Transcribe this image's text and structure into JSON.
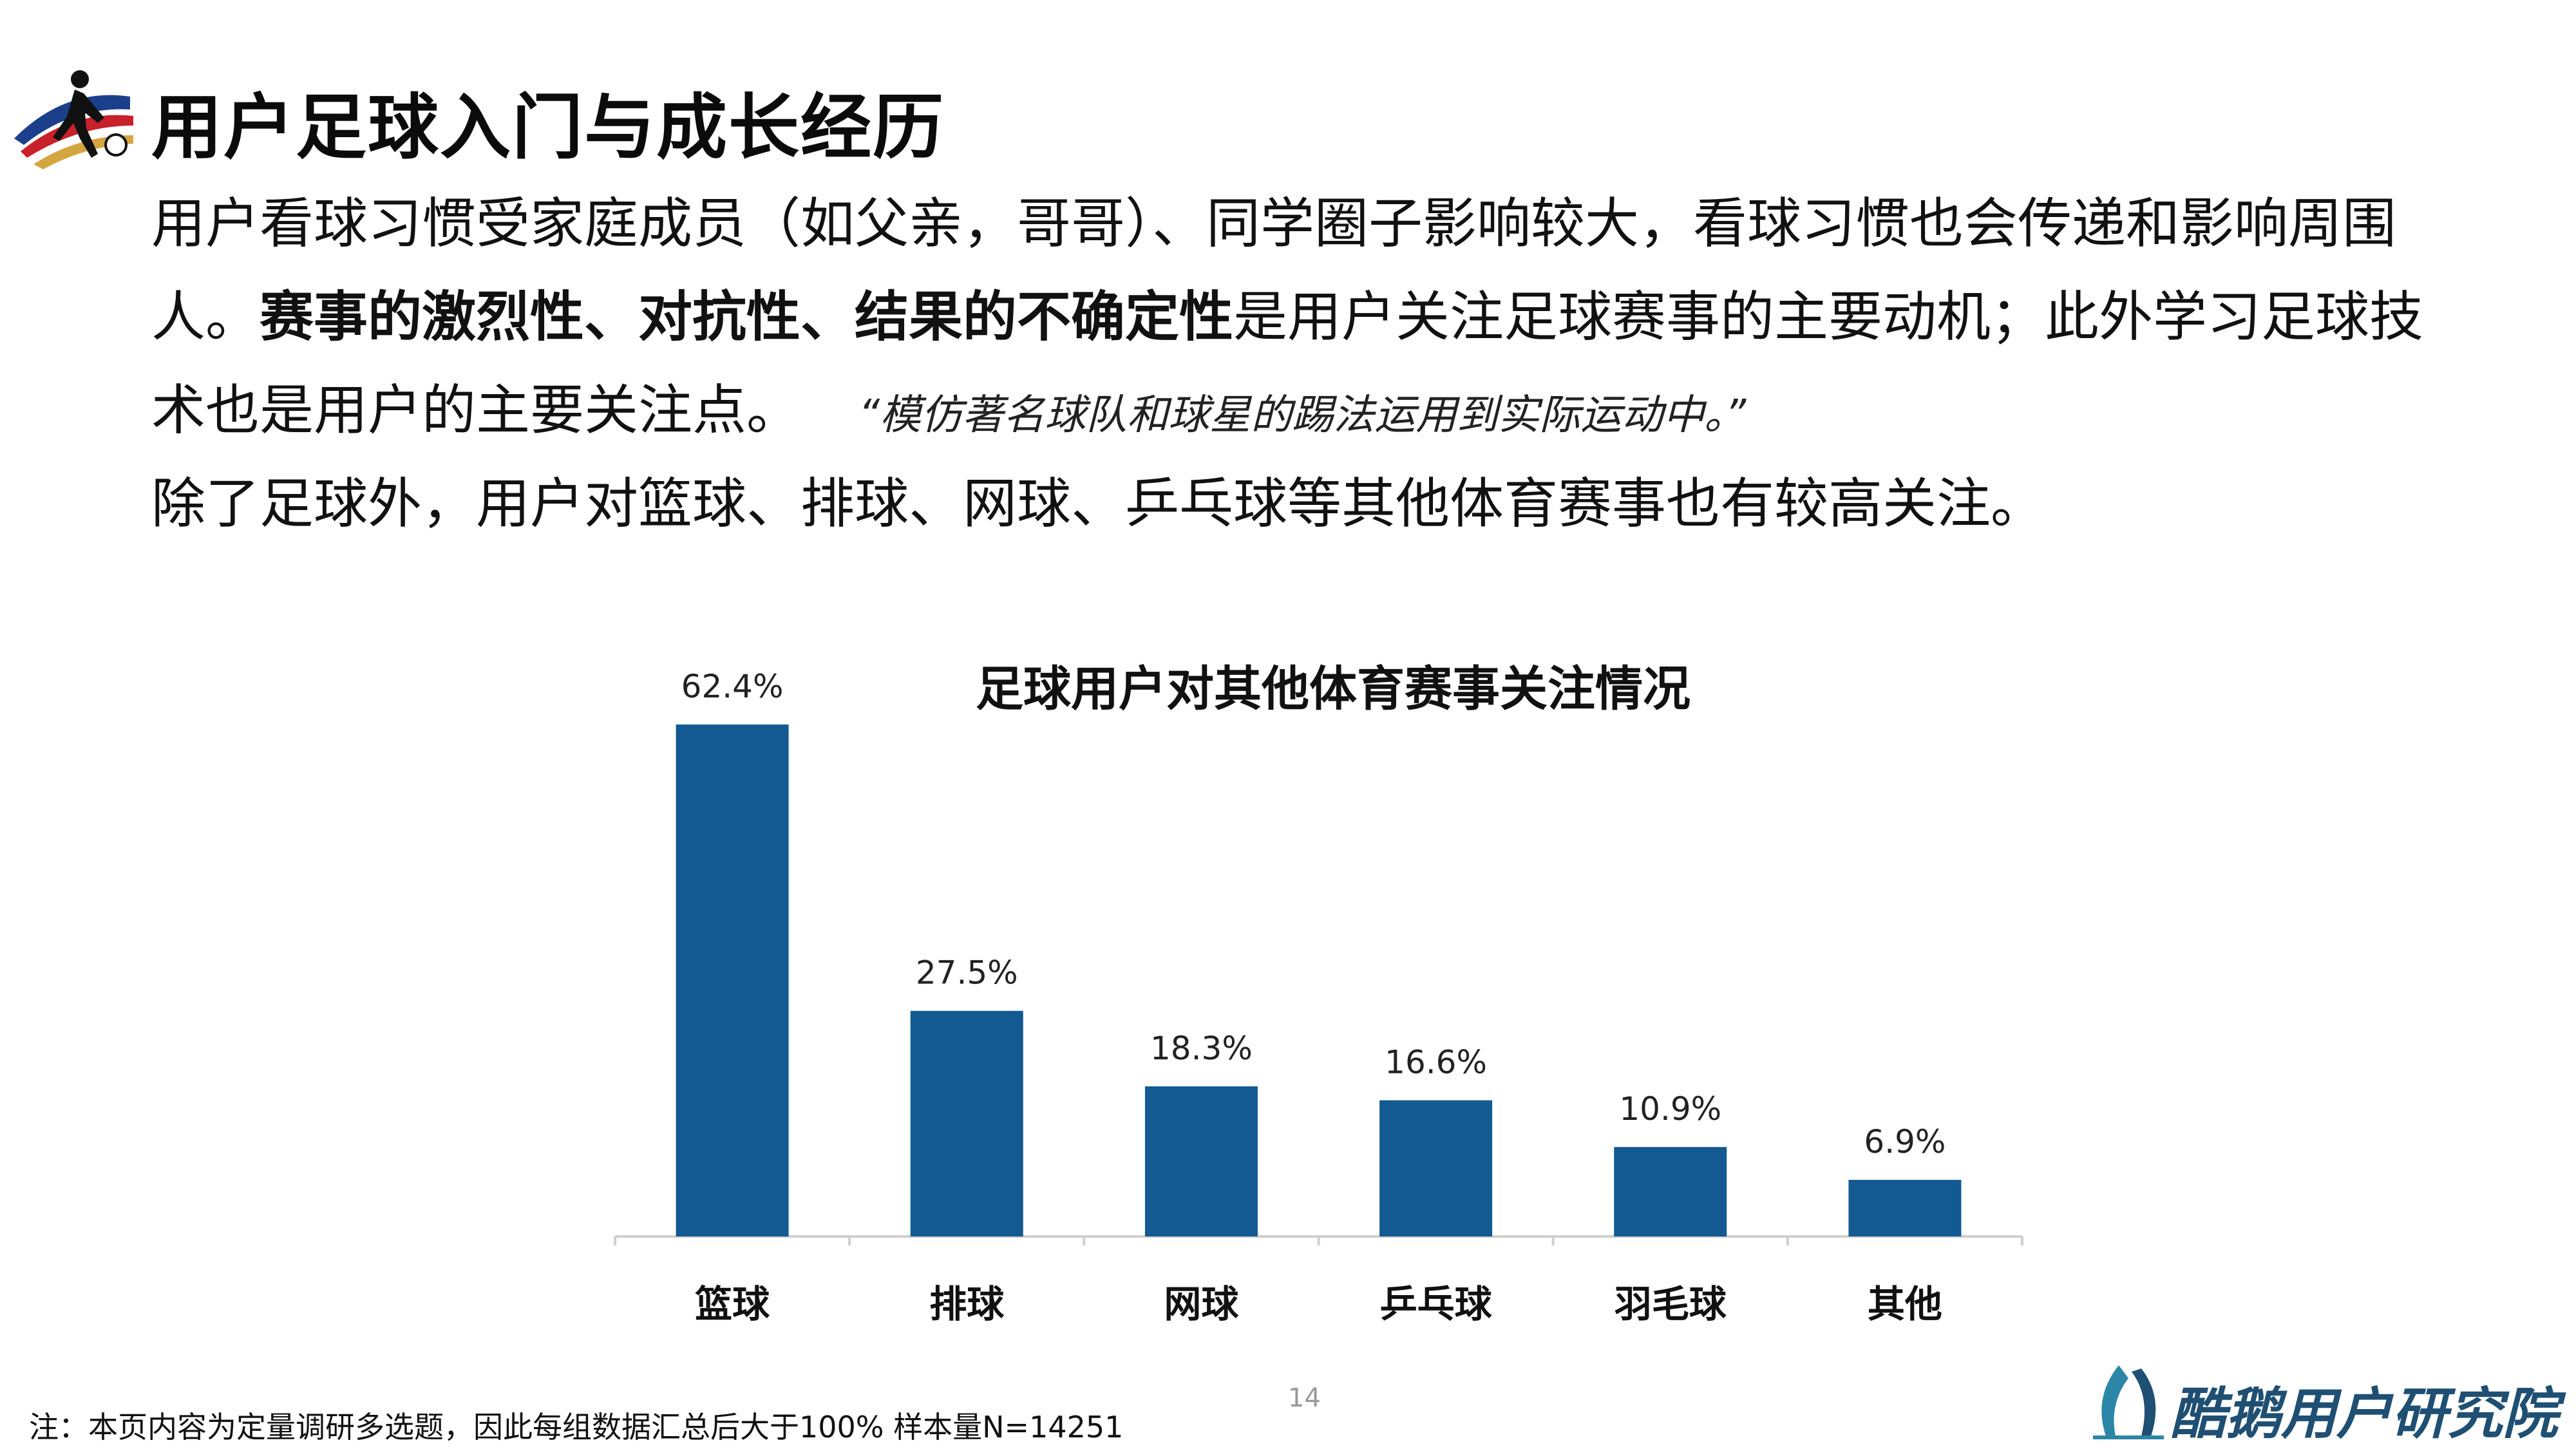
{
  "header": {
    "title": "用户足球入门与成长经历",
    "logo_icon": "football-player-logo-icon"
  },
  "body": {
    "p1": "用户看球习惯受家庭成员（如父亲，哥哥）、同学圈子影响较大，看球习惯也会传递和影响周围",
    "p2_lead": "人。",
    "p2_bold": "赛事的激烈性、对抗性、结果的不确定性",
    "p2_rest": "是用户关注足球赛事的主要动机；此外学习足球技",
    "p3": "术也是用户的主要关注点。",
    "p3_quote": "“模仿著名球队和球星的踢法运用到实际运动中。”",
    "p4": "除了足球外，用户对篮球、排球、网球、乒乓球等其他体育赛事也有较高关注。"
  },
  "chart_data": {
    "type": "bar",
    "title": "足球用户对其他体育赛事关注情况",
    "categories": [
      "篮球",
      "排球",
      "网球",
      "乒乓球",
      "羽毛球",
      "其他"
    ],
    "values": [
      62.4,
      27.5,
      18.3,
      16.6,
      10.9,
      6.9
    ],
    "value_labels": [
      "62.4%",
      "27.5%",
      "18.3%",
      "16.6%",
      "10.9%",
      "6.9%"
    ],
    "ylim": [
      0,
      62.4
    ],
    "bar_color": "#125a91",
    "grid": false
  },
  "footer": {
    "note": "注：本页内容为定量调研多选题，因此每组数据汇总后大于100%  样本量N=14251",
    "page_number": "14",
    "brand": "酷鹅用户研究院",
    "brand_icon": "penguin-logo-icon"
  }
}
